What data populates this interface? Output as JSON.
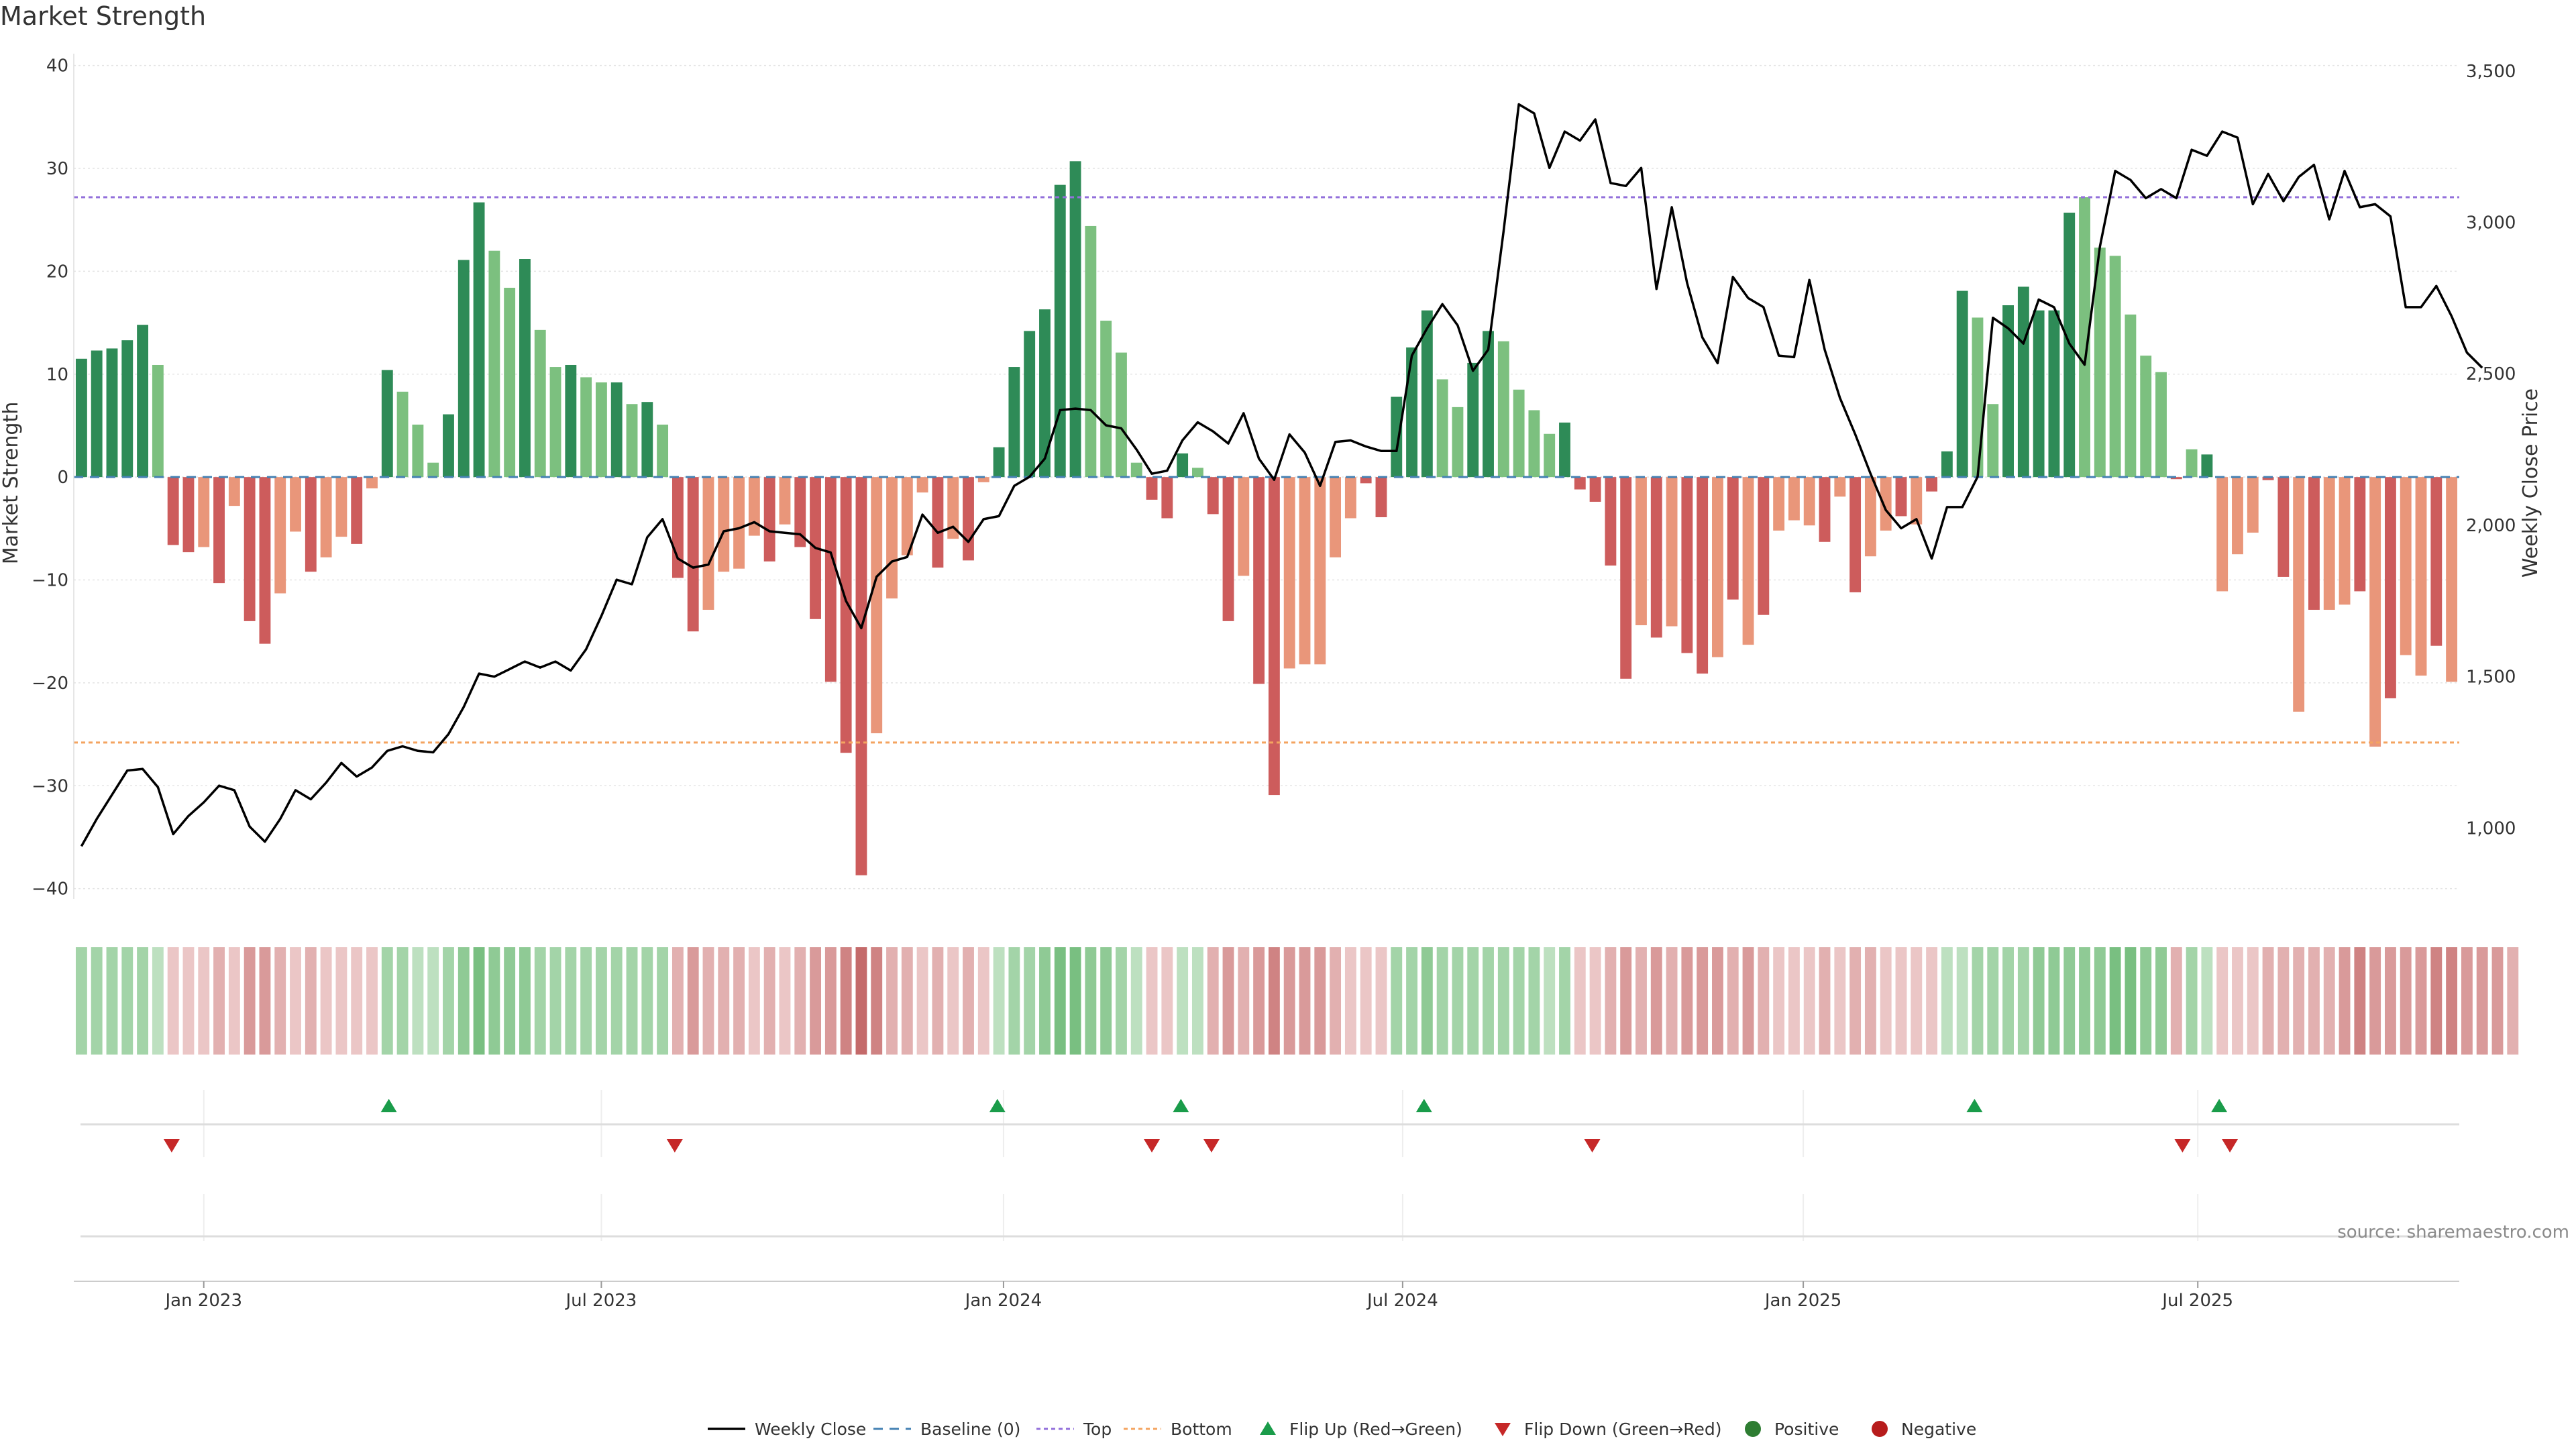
{
  "title": "Market Strength",
  "source": "source: sharemaestro.com",
  "colors": {
    "strong_green": "#2e8b57",
    "light_green": "#7cc07f",
    "strong_red": "#cd5c5c",
    "light_red": "#e9967a",
    "price": "#000000",
    "top": "#9370db",
    "bottom": "#f4a460",
    "baseline": "#4682b4",
    "flip_up": "#1a9c4a",
    "flip_down": "#c62828",
    "positive": "#2e7d32",
    "negative": "#b71c1c"
  },
  "chart_data": {
    "type": "bar+line",
    "title": "Market Strength",
    "ylabel_left": "Market Strength",
    "ylabel_right": "Weekly Close Price",
    "ylim_left": [
      -41,
      40.5
    ],
    "ylim_right": [
      766,
      3535
    ],
    "left_ticks": [
      40,
      30,
      20,
      10,
      0,
      -10,
      -20,
      -30,
      -40
    ],
    "left_tick_labels": [
      "40",
      "30",
      "20",
      "10",
      "0",
      "−10",
      "−20",
      "−30",
      "−40"
    ],
    "right_ticks": [
      3500,
      3000,
      2500,
      2000,
      1500,
      1000
    ],
    "right_tick_labels": [
      "3,500",
      "3,000",
      "2,500",
      "2,000",
      "1,500",
      "1,000"
    ],
    "x_tick_labels": [
      "Jan 2023",
      "Jul 2023",
      "Jan 2024",
      "Jul 2024",
      "Jan 2025",
      "Jul 2025"
    ],
    "x_tick_weeks": [
      8,
      34,
      60.3,
      86.4,
      112.6,
      138.4
    ],
    "top_line": 27.2,
    "bottom_line": -25.8,
    "baseline": 0,
    "strength": [
      11.5,
      12.3,
      12.5,
      13.3,
      14.8,
      10.9,
      -6.6,
      -7.3,
      -6.8,
      -10.3,
      -2.8,
      -14,
      -16.2,
      -11.3,
      -5.3,
      -9.2,
      -7.8,
      -5.8,
      -6.5,
      -1.1,
      10.4,
      8.3,
      5.1,
      1.4,
      6.1,
      21.1,
      26.7,
      22,
      18.4,
      21.2,
      14.3,
      10.7,
      10.9,
      9.7,
      9.2,
      9.2,
      7.1,
      7.3,
      5.1,
      -9.8,
      -15,
      -12.9,
      -9.2,
      -8.9,
      -5.7,
      -8.2,
      -4.6,
      -6.8,
      -13.8,
      -19.9,
      -26.8,
      -38.7,
      -24.9,
      -11.8,
      -7.6,
      -1.5,
      -8.8,
      -6,
      -8.1,
      -0.5,
      2.9,
      10.7,
      14.2,
      16.3,
      28.4,
      30.7,
      24.4,
      15.2,
      12.1,
      1.4,
      -2.2,
      -4,
      2.3,
      0.9,
      -3.6,
      -14,
      -9.6,
      -20.1,
      -30.9,
      -18.6,
      -18.2,
      -18.2,
      -7.8,
      -4,
      -0.6,
      -3.9,
      7.8,
      12.6,
      16.2,
      9.5,
      6.8,
      11.1,
      14.2,
      13.2,
      8.5,
      6.5,
      4.2,
      5.3,
      -1.2,
      -2.4,
      -8.6,
      -19.6,
      -14.4,
      -15.6,
      -14.5,
      -17.1,
      -19.1,
      -17.5,
      -11.9,
      -16.3,
      -13.4,
      -5.2,
      -4.2,
      -4.7,
      -6.3,
      -1.9,
      -11.2,
      -7.7,
      -5.2,
      -3.8,
      -4.6,
      -1.4,
      2.5,
      18.1,
      15.5,
      7.1,
      16.7,
      18.5,
      16.2,
      16.2,
      25.7,
      27.2,
      22.3,
      21.5,
      15.8,
      11.8,
      10.2,
      -0.2,
      2.7,
      2.2,
      -11.1,
      -7.5,
      -5.4,
      -0.3,
      -9.7,
      -22.8,
      -12.9,
      -12.9,
      -12.4,
      -11.1,
      -26.2,
      -21.5,
      -17.3,
      -19.3,
      -16.4,
      -19.9
    ],
    "bar_strong": [
      1,
      1,
      1,
      1,
      1,
      0,
      1,
      1,
      0,
      1,
      0,
      1,
      1,
      0,
      0,
      1,
      0,
      0,
      1,
      0,
      1,
      0,
      0,
      0,
      1,
      1,
      1,
      0,
      0,
      1,
      0,
      0,
      1,
      0,
      0,
      1,
      0,
      1,
      0,
      1,
      1,
      0,
      0,
      0,
      0,
      1,
      0,
      1,
      1,
      1,
      1,
      1,
      0,
      0,
      0,
      0,
      1,
      0,
      1,
      0,
      1,
      1,
      1,
      1,
      1,
      1,
      0,
      0,
      0,
      0,
      1,
      1,
      1,
      0,
      1,
      1,
      0,
      1,
      1,
      0,
      0,
      0,
      0,
      0,
      1,
      1,
      1,
      1,
      1,
      0,
      0,
      1,
      1,
      0,
      0,
      0,
      0,
      1,
      1,
      1,
      1,
      1,
      0,
      1,
      0,
      1,
      1,
      0,
      1,
      0,
      1,
      0,
      0,
      0,
      1,
      0,
      1,
      0,
      0,
      1,
      0,
      1,
      1,
      1,
      0,
      0,
      1,
      1,
      1,
      1,
      1,
      0,
      0,
      0,
      0,
      0,
      0,
      1,
      0,
      1,
      0,
      0,
      0,
      1,
      1,
      0,
      1,
      0,
      0,
      1,
      0,
      1,
      0,
      0,
      1
    ],
    "heat": [
      2,
      2,
      2,
      2,
      2,
      1,
      1,
      1,
      1,
      2,
      1,
      3,
      3,
      2,
      1,
      2,
      1,
      1,
      1,
      1,
      2,
      2,
      1,
      1,
      2,
      3,
      4,
      3,
      3,
      3,
      2,
      2,
      2,
      2,
      2,
      2,
      2,
      2,
      2,
      2,
      3,
      2,
      2,
      2,
      1,
      2,
      1,
      2,
      3,
      3,
      4,
      5,
      4,
      2,
      2,
      1,
      2,
      1,
      2,
      1,
      1,
      2,
      2,
      3,
      4,
      4,
      3,
      3,
      2,
      1,
      1,
      1,
      1,
      1,
      2,
      3,
      2,
      3,
      4,
      3,
      3,
      3,
      2,
      1,
      1,
      1,
      2,
      2,
      3,
      2,
      2,
      2,
      2,
      2,
      2,
      2,
      1,
      2,
      1,
      1,
      2,
      3,
      2,
      3,
      2,
      3,
      3,
      3,
      2,
      3,
      2,
      1,
      1,
      1,
      2,
      1,
      2,
      2,
      1,
      1,
      1,
      1,
      1,
      1,
      2,
      2,
      2,
      2,
      3,
      3,
      3,
      3,
      3,
      4,
      4,
      3,
      3,
      2,
      2,
      1,
      1,
      1,
      1,
      2,
      2,
      2,
      2,
      2,
      3,
      4,
      3,
      3,
      3,
      3,
      4,
      4,
      3,
      3,
      3,
      2
    ],
    "price": [
      940,
      1030,
      1110,
      1190,
      1195,
      1135,
      980,
      1040,
      1085,
      1140,
      1125,
      1005,
      955,
      1030,
      1125,
      1095,
      1150,
      1215,
      1170,
      1200,
      1255,
      1270,
      1255,
      1250,
      1310,
      1400,
      1510,
      1500,
      1525,
      1550,
      1530,
      1550,
      1520,
      1590,
      1700,
      1820,
      1805,
      1960,
      2020,
      1890,
      1860,
      1870,
      1980,
      1990,
      2010,
      1980,
      1975,
      1970,
      1925,
      1910,
      1750,
      1660,
      1830,
      1880,
      1895,
      2035,
      1975,
      1995,
      1945,
      2020,
      2030,
      2130,
      2160,
      2220,
      2380,
      2385,
      2380,
      2330,
      2320,
      2250,
      2170,
      2180,
      2280,
      2340,
      2310,
      2270,
      2370,
      2220,
      2150,
      2300,
      2240,
      2130,
      2275,
      2280,
      2260,
      2245,
      2245,
      2560,
      2650,
      2730,
      2660,
      2510,
      2580,
      2970,
      3390,
      3360,
      3180,
      3300,
      3270,
      3340,
      3130,
      3120,
      3180,
      2780,
      3050,
      2800,
      2620,
      2535,
      2820,
      2750,
      2720,
      2560,
      2555,
      2810,
      2580,
      2420,
      2300,
      2170,
      2050,
      1990,
      2020,
      1890,
      2060,
      2060,
      2160,
      2685,
      2650,
      2600,
      2745,
      2720,
      2600,
      2530,
      2920,
      3170,
      3140,
      3080,
      3110,
      3080,
      3240,
      3220,
      3300,
      3280,
      3060,
      3160,
      3070,
      3150,
      3190,
      3010,
      3170,
      3050,
      3060,
      3020,
      2720,
      2720,
      2790,
      2690,
      2570,
      2520
    ],
    "flip_up_weeks": [
      20.1,
      59.9,
      71.9,
      87.8,
      123.8,
      139.8
    ],
    "flip_down_weeks": [
      5.9,
      38.8,
      70,
      73.9,
      98.8,
      137.4,
      140.5
    ]
  },
  "legend": [
    {
      "label": "Weekly Close",
      "symbol": "line"
    },
    {
      "label": "Baseline (0)",
      "symbol": "dash"
    },
    {
      "label": "Top",
      "symbol": "dot-top"
    },
    {
      "label": "Bottom",
      "symbol": "dot-bottom"
    },
    {
      "label": "Flip Up (Red→Green)",
      "symbol": "tri-up"
    },
    {
      "label": "Flip Down (Green→Red)",
      "symbol": "tri-down"
    },
    {
      "label": "Positive",
      "symbol": "circle-pos"
    },
    {
      "label": "Negative",
      "symbol": "circle-neg"
    }
  ]
}
